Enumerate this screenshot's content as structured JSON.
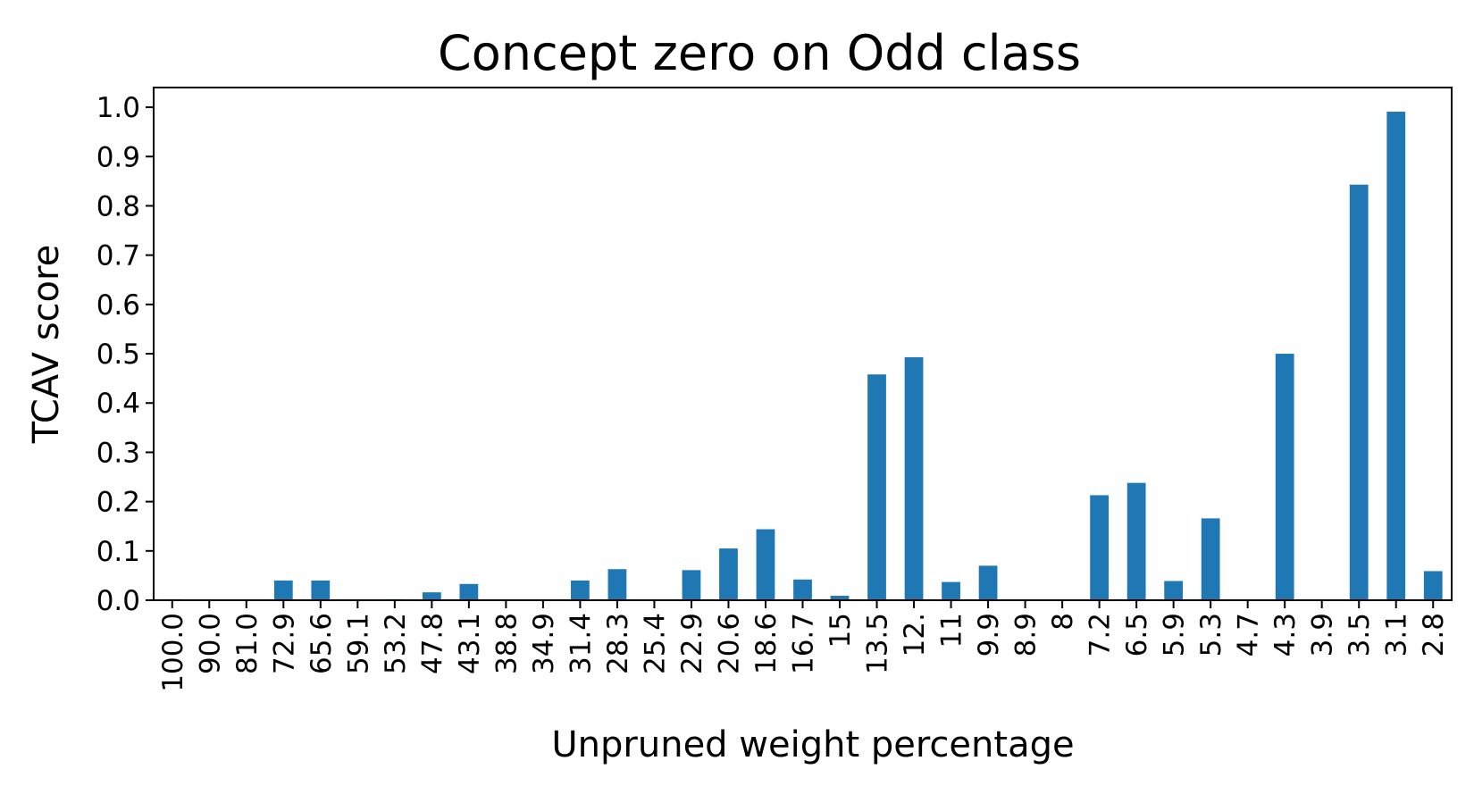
{
  "chart_data": {
    "type": "bar",
    "title": "Concept zero on Odd class",
    "xlabel": "Unpruned weight percentage",
    "ylabel": "TCAV score",
    "ylim": [
      0.0,
      1.04
    ],
    "yticks": [
      "0.0",
      "0.1",
      "0.2",
      "0.3",
      "0.4",
      "0.5",
      "0.6",
      "0.7",
      "0.8",
      "0.9",
      "1.0"
    ],
    "grid": false,
    "bar_color": "#1f77b4",
    "categories": [
      "100.0",
      "90.0",
      "81.0",
      "72.9",
      "65.6",
      "59.1",
      "53.2",
      "47.8",
      "43.1",
      "38.8",
      "34.9",
      "31.4",
      "28.3",
      "25.4",
      "22.9",
      "20.6",
      "18.6",
      "16.7",
      "15",
      "13.5",
      "12.",
      "11",
      "9.9",
      "8.9",
      "8",
      "7.2",
      "6.5",
      "5.9",
      "5.3",
      "4.7",
      "4.3",
      "3.9",
      "3.5",
      "3.1",
      "2.8"
    ],
    "values": [
      0.002,
      0.0,
      0.0,
      0.04,
      0.04,
      0.0,
      0.002,
      0.016,
      0.033,
      0.0,
      0.0,
      0.04,
      0.063,
      0.0,
      0.061,
      0.105,
      0.144,
      0.042,
      0.009,
      0.458,
      0.493,
      0.037,
      0.07,
      0.0,
      0.0,
      0.213,
      0.238,
      0.039,
      0.166,
      0.0,
      0.5,
      0.0,
      0.843,
      0.991,
      0.059
    ]
  }
}
